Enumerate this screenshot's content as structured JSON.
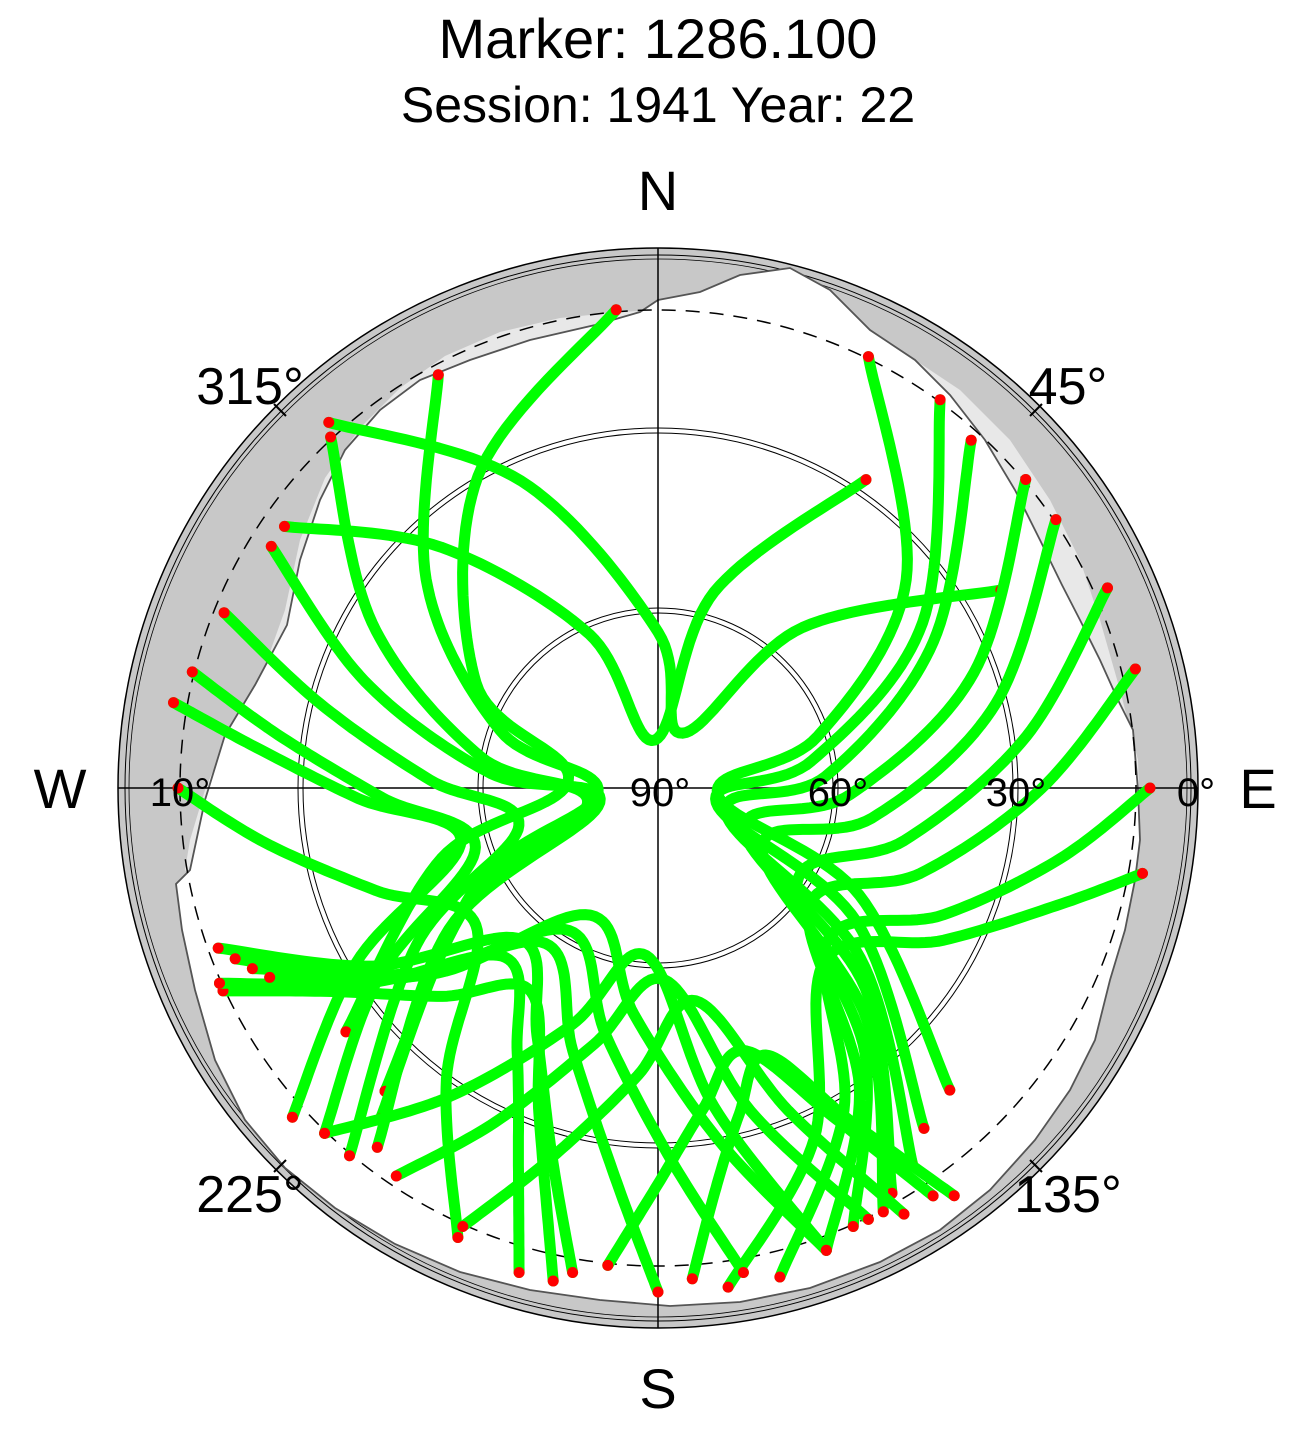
{
  "title": "Marker: 1286.100",
  "subtitle": "Session: 1941 Year: 22",
  "chart_data": {
    "type": "scatter",
    "projection": "polar-skyplot",
    "title": "Marker: 1286.100",
    "subtitle": "Session: 1941 Year: 22",
    "compass_labels": [
      "N",
      "E",
      "S",
      "W"
    ],
    "azimuth_tick_labels": [
      "45°",
      "135°",
      "225°",
      "315°"
    ],
    "elevation_tick_labels": [
      "90°",
      "60°",
      "30°",
      "0°",
      "10°"
    ],
    "elevation_rings_deg": [
      60,
      30,
      0
    ],
    "cutoff_ring_deg": 10,
    "point_colors": {
      "track": "#00ff00",
      "endpoint": "#ff0000"
    },
    "horizon_mask_color": "#c8c8c8",
    "visibility_shade_color": "#e8e8e8",
    "tracks": [
      {
        "az": [
          355,
          330,
          300,
          275,
          252,
          232
        ],
        "el": [
          10,
          30,
          55,
          75,
          52,
          24
        ]
      },
      {
        "az": [
          332,
          312,
          290,
          266,
          242,
          222
        ],
        "el": [
          12,
          38,
          62,
          80,
          56,
          22
        ]
      },
      {
        "az": [
          317,
          300,
          280,
          258,
          238,
          220
        ],
        "el": [
          10,
          35,
          60,
          78,
          52,
          18
        ]
      },
      {
        "az": [
          302,
          290,
          275,
          256,
          236,
          218
        ],
        "el": [
          14,
          38,
          62,
          80,
          48,
          14
        ]
      },
      {
        "az": [
          292,
          284,
          272,
          255,
          237,
          220
        ],
        "el": [
          12,
          32,
          52,
          66,
          42,
          10
        ]
      },
      {
        "az": [
          284,
          278,
          268,
          252,
          236,
          224
        ],
        "el": [
          10,
          26,
          44,
          58,
          34,
          10
        ]
      },
      {
        "az": [
          280,
          276,
          268,
          255,
          240,
          228
        ],
        "el": [
          8,
          22,
          40,
          56,
          32,
          8
        ]
      },
      {
        "az": [
          270,
          262,
          250,
          233,
          216,
          204
        ],
        "el": [
          10,
          24,
          40,
          52,
          30,
          8
        ]
      },
      {
        "az": [
          245,
          238,
          226,
          212,
          200,
          192
        ],
        "el": [
          10,
          26,
          40,
          50,
          32,
          6
        ]
      },
      {
        "az": [
          305,
          318,
          336,
          356,
          16,
          34
        ],
        "el": [
          14,
          36,
          62,
          82,
          56,
          28
        ]
      },
      {
        "az": [
          318,
          336,
          0,
          24,
          42,
          60
        ],
        "el": [
          8,
          34,
          64,
          80,
          54,
          24
        ]
      },
      {
        "az": [
          26,
          50,
          72,
          96,
          118,
          136
        ],
        "el": [
          10,
          36,
          62,
          80,
          52,
          20
        ]
      },
      {
        "az": [
          36,
          58,
          80,
          104,
          124,
          142
        ],
        "el": [
          10,
          38,
          64,
          80,
          50,
          18
        ]
      },
      {
        "az": [
          42,
          62,
          86,
          110,
          130,
          146
        ],
        "el": [
          12,
          38,
          62,
          78,
          46,
          14
        ]
      },
      {
        "az": [
          50,
          70,
          92,
          116,
          134,
          150
        ],
        "el": [
          10,
          34,
          58,
          74,
          42,
          12
        ]
      },
      {
        "az": [
          56,
          76,
          98,
          120,
          138,
          152
        ],
        "el": [
          10,
          32,
          54,
          70,
          38,
          10
        ]
      },
      {
        "az": [
          66,
          82,
          102,
          124,
          142,
          156
        ],
        "el": [
          8,
          28,
          48,
          62,
          34,
          10
        ]
      },
      {
        "az": [
          76,
          90,
          108,
          128,
          146,
          160
        ],
        "el": [
          8,
          26,
          44,
          58,
          30,
          8
        ]
      },
      {
        "az": [
          90,
          100,
          114,
          132,
          150,
          166
        ],
        "el": [
          8,
          22,
          38,
          52,
          28,
          6
        ]
      },
      {
        "az": [
          100,
          106,
          118,
          136,
          156,
          172
        ],
        "el": [
          8,
          20,
          36,
          50,
          26,
          6
        ]
      },
      {
        "az": [
          204,
          196,
          184,
          170,
          158,
          150
        ],
        "el": [
          10,
          26,
          42,
          54,
          32,
          8
        ]
      },
      {
        "az": [
          214,
          206,
          194,
          178,
          164,
          154
        ],
        "el": [
          12,
          28,
          46,
          58,
          34,
          10
        ]
      },
      {
        "az": [
          224,
          214,
          200,
          184,
          170,
          160
        ],
        "el": [
          10,
          28,
          48,
          62,
          36,
          8
        ]
      },
      {
        "az": [
          186,
          180,
          172,
          162,
          152,
          146
        ],
        "el": [
          10,
          24,
          36,
          44,
          28,
          8
        ]
      },
      {
        "az": [
          176,
          172,
          166,
          158,
          150,
          144
        ],
        "el": [
          8,
          22,
          34,
          42,
          26,
          6
        ]
      },
      {
        "az": [
          196,
          200,
          208,
          222,
          236,
          246
        ],
        "el": [
          6,
          22,
          40,
          52,
          32,
          10
        ]
      },
      {
        "az": [
          190,
          196,
          206,
          222,
          238,
          250
        ],
        "el": [
          8,
          26,
          44,
          56,
          34,
          12
        ]
      },
      {
        "az": [
          180,
          186,
          198,
          216,
          234,
          248
        ],
        "el": [
          6,
          24,
          44,
          58,
          36,
          14
        ]
      },
      {
        "az": [
          170,
          178,
          192,
          212,
          232,
          246
        ],
        "el": [
          8,
          28,
          48,
          62,
          40,
          16
        ]
      },
      {
        "az": [
          160,
          170,
          186,
          208,
          230,
          244
        ],
        "el": [
          8,
          30,
          52,
          66,
          42,
          18
        ]
      }
    ]
  }
}
